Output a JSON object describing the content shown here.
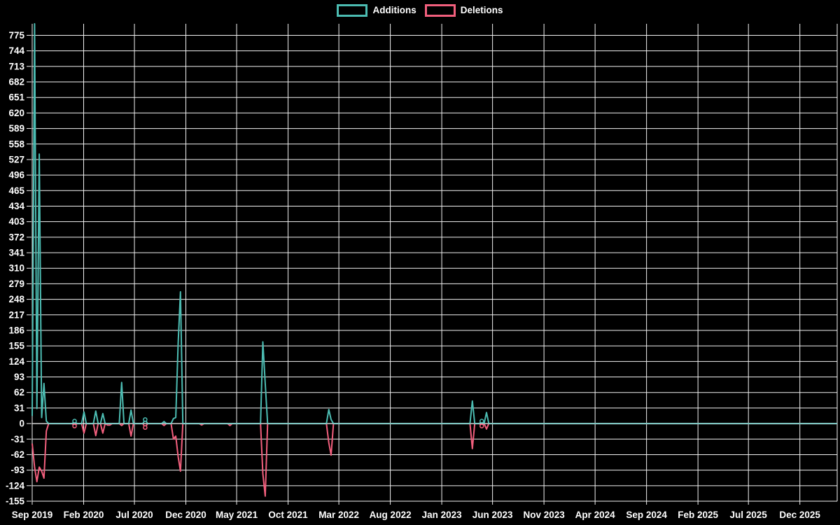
{
  "colors": {
    "background": "#000000",
    "grid": "#f2f2f2",
    "additions": "#4cbcb2",
    "deletions": "#f25f7d",
    "axis_text": "#ffffff",
    "zero_line_overlay": "rgba(255,255,255,0.28)"
  },
  "chart_data": {
    "type": "line",
    "title": "",
    "legend_position": "top",
    "grid": true,
    "legend": [
      {
        "label": "Additions",
        "color": "#4cbcb2"
      },
      {
        "label": "Deletions",
        "color": "#f25f7d"
      }
    ],
    "ylabel": "",
    "xlabel": "",
    "y_axis": {
      "ticks": [
        775,
        744,
        713,
        682,
        651,
        620,
        589,
        558,
        527,
        496,
        465,
        434,
        403,
        372,
        341,
        310,
        279,
        248,
        217,
        186,
        155,
        124,
        93,
        62,
        31,
        0,
        -31,
        -62,
        -93,
        -124,
        -155
      ],
      "visible_min": -155,
      "visible_max": 798
    },
    "x_axis": {
      "start_date": "2019-09-01",
      "end_date": "2026-03-22",
      "ticks": [
        {
          "label": "Sep 2019",
          "date": "2019-09-01"
        },
        {
          "label": "Feb 2020",
          "date": "2020-02-01"
        },
        {
          "label": "Jul 2020",
          "date": "2020-07-01"
        },
        {
          "label": "Dec 2020",
          "date": "2020-12-01"
        },
        {
          "label": "May 2021",
          "date": "2021-05-01"
        },
        {
          "label": "Oct 2021",
          "date": "2021-10-01"
        },
        {
          "label": "Mar 2022",
          "date": "2022-03-01"
        },
        {
          "label": "Aug 2022",
          "date": "2022-08-01"
        },
        {
          "label": "Jan 2023",
          "date": "2023-01-01"
        },
        {
          "label": "Jun 2023",
          "date": "2023-06-01"
        },
        {
          "label": "Nov 2023",
          "date": "2023-11-01"
        },
        {
          "label": "Apr 2024",
          "date": "2024-04-01"
        },
        {
          "label": "Sep 2024",
          "date": "2024-09-01"
        },
        {
          "label": "Feb 2025",
          "date": "2025-02-01"
        },
        {
          "label": "Jul 2025",
          "date": "2025-07-01"
        },
        {
          "label": "Dec 2025",
          "date": "2025-12-01"
        }
      ]
    },
    "series_note": "weekly values; weeks not listed are additions 0 and deletions 0; additions spike of 800 is clipped at top of plot",
    "weeks": [
      {
        "date": "2019-09-01",
        "additions": 15,
        "deletions": -40
      },
      {
        "date": "2019-09-08",
        "additions": 800,
        "deletions": -87
      },
      {
        "date": "2019-09-15",
        "additions": 30,
        "deletions": -116
      },
      {
        "date": "2019-09-22",
        "additions": 538,
        "deletions": -87
      },
      {
        "date": "2019-09-29",
        "additions": 12,
        "deletions": -95
      },
      {
        "date": "2019-10-06",
        "additions": 80,
        "deletions": -109
      },
      {
        "date": "2019-10-13",
        "additions": 5,
        "deletions": -15
      },
      {
        "date": "2020-01-05",
        "additions": 5,
        "deletions": -5
      },
      {
        "date": "2020-02-02",
        "additions": 23,
        "deletions": -19
      },
      {
        "date": "2020-03-08",
        "additions": 25,
        "deletions": -24
      },
      {
        "date": "2020-03-29",
        "additions": 20,
        "deletions": -19
      },
      {
        "date": "2020-04-12",
        "additions": 0,
        "deletions": -3
      },
      {
        "date": "2020-04-19",
        "additions": 0,
        "deletions": -3
      },
      {
        "date": "2020-05-24",
        "additions": 82,
        "deletions": -4
      },
      {
        "date": "2020-06-21",
        "additions": 27,
        "deletions": -25
      },
      {
        "date": "2020-08-02",
        "additions": 8,
        "deletions": -8
      },
      {
        "date": "2020-09-27",
        "additions": 4,
        "deletions": -4
      },
      {
        "date": "2020-10-25",
        "additions": 10,
        "deletions": -31
      },
      {
        "date": "2020-11-01",
        "additions": 12,
        "deletions": -25
      },
      {
        "date": "2020-11-08",
        "additions": 160,
        "deletions": -66
      },
      {
        "date": "2020-11-15",
        "additions": 263,
        "deletions": -95
      },
      {
        "date": "2021-01-17",
        "additions": 0,
        "deletions": -3
      },
      {
        "date": "2021-04-11",
        "additions": 0,
        "deletions": -4
      },
      {
        "date": "2021-07-18",
        "additions": 163,
        "deletions": -100
      },
      {
        "date": "2021-07-25",
        "additions": 80,
        "deletions": -145
      },
      {
        "date": "2022-01-30",
        "additions": 28,
        "deletions": -38
      },
      {
        "date": "2022-02-06",
        "additions": 8,
        "deletions": -63
      },
      {
        "date": "2023-04-02",
        "additions": 45,
        "deletions": -50
      },
      {
        "date": "2023-04-30",
        "additions": 5,
        "deletions": -5
      },
      {
        "date": "2023-05-14",
        "additions": 22,
        "deletions": -11
      }
    ],
    "dot_weeks": [
      "2020-01-05",
      "2020-08-02",
      "2023-04-30"
    ]
  }
}
